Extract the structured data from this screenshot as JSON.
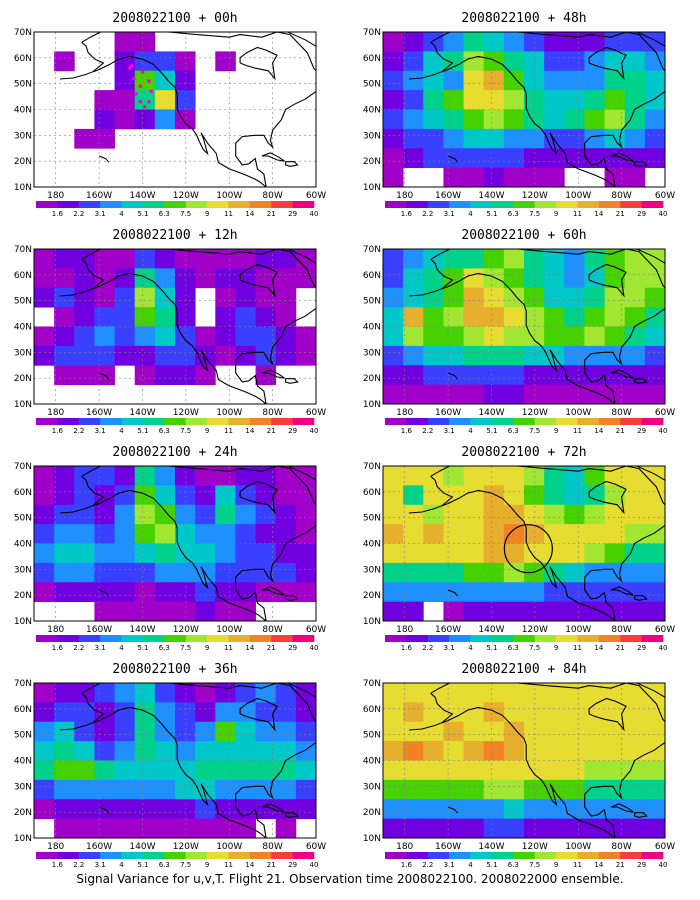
{
  "caption": "Signal Variance for u,v,T. Flight 21. Observation time 2008022100. 2008022000 ensemble.",
  "colorbar": {
    "labels": [
      "1.6",
      "2.2",
      "3.1",
      "4",
      "5.1",
      "6.3",
      "7.5",
      "9",
      "11",
      "14",
      "21",
      "29",
      "40"
    ],
    "colors": [
      "#ffffff",
      "#a000c8",
      "#7000e0",
      "#3a40ff",
      "#1e90ff",
      "#00c8c8",
      "#00d28c",
      "#46d200",
      "#a0e632",
      "#e6dc32",
      "#e6af2d",
      "#f08228",
      "#fa3c3c",
      "#f00082"
    ]
  },
  "axes": {
    "x_ticks": [
      "180",
      "160W",
      "140W",
      "120W",
      "100W",
      "80W",
      "60W"
    ],
    "y_ticks": [
      "10N",
      "20N",
      "30N",
      "40N",
      "50N",
      "60N",
      "70N"
    ],
    "xlim": [
      -190,
      -60
    ],
    "ylim": [
      10,
      70
    ]
  },
  "panels": [
    {
      "title": "2008022100 + 00h"
    },
    {
      "title": "2008022100 + 48h"
    },
    {
      "title": "2008022100 + 12h"
    },
    {
      "title": "2008022100 + 60h"
    },
    {
      "title": "2008022100 + 24h"
    },
    {
      "title": "2008022100 + 72h"
    },
    {
      "title": "2008022100 + 36h"
    },
    {
      "title": "2008022100 + 84h"
    }
  ],
  "chart_data": [
    {
      "type": "heatmap",
      "title": "2008022100 + 00h",
      "value_unit": "",
      "field": [
        [
          0,
          0,
          0,
          0,
          1,
          1,
          0,
          0,
          0,
          0,
          0,
          0,
          0,
          0
        ],
        [
          0,
          1,
          0,
          0,
          2,
          3,
          3,
          1,
          0,
          1,
          0,
          0,
          0,
          0
        ],
        [
          0,
          0,
          0,
          0,
          2,
          7,
          5,
          2,
          0,
          0,
          0,
          0,
          0,
          0
        ],
        [
          0,
          0,
          0,
          1,
          1,
          6,
          9,
          3,
          0,
          0,
          0,
          0,
          0,
          0
        ],
        [
          0,
          0,
          0,
          2,
          1,
          2,
          4,
          1,
          0,
          0,
          0,
          0,
          0,
          0
        ],
        [
          0,
          0,
          1,
          1,
          0,
          0,
          0,
          0,
          0,
          0,
          0,
          0,
          0,
          0
        ],
        [
          0,
          0,
          0,
          0,
          0,
          0,
          0,
          0,
          0,
          0,
          0,
          0,
          0,
          0
        ],
        [
          0,
          0,
          0,
          0,
          0,
          0,
          0,
          0,
          0,
          0,
          0,
          0,
          0,
          0
        ]
      ]
    },
    {
      "type": "heatmap",
      "title": "2008022100 + 48h",
      "value_unit": "",
      "field": [
        [
          1,
          2,
          3,
          4,
          6,
          5,
          4,
          3,
          2,
          2,
          2,
          3,
          3,
          3
        ],
        [
          2,
          3,
          5,
          6,
          8,
          7,
          6,
          5,
          3,
          3,
          4,
          5,
          5,
          4
        ],
        [
          3,
          4,
          5,
          4,
          9,
          10,
          7,
          5,
          4,
          4,
          4,
          6,
          6,
          5
        ],
        [
          2,
          3,
          6,
          7,
          9,
          9,
          8,
          6,
          5,
          5,
          6,
          7,
          6,
          5
        ],
        [
          3,
          4,
          5,
          6,
          7,
          8,
          7,
          6,
          5,
          6,
          7,
          8,
          6,
          4
        ],
        [
          2,
          3,
          3,
          4,
          5,
          5,
          4,
          4,
          3,
          3,
          4,
          5,
          4,
          3
        ],
        [
          1,
          2,
          3,
          3,
          3,
          3,
          3,
          2,
          2,
          2,
          2,
          2,
          2,
          2
        ],
        [
          1,
          0,
          0,
          1,
          1,
          2,
          1,
          1,
          1,
          0,
          0,
          1,
          1,
          0
        ]
      ]
    },
    {
      "type": "heatmap",
      "title": "2008022100 + 12h",
      "value_unit": "",
      "field": [
        [
          1,
          2,
          2,
          1,
          1,
          3,
          2,
          1,
          1,
          1,
          1,
          2,
          2,
          1
        ],
        [
          1,
          1,
          2,
          1,
          2,
          6,
          4,
          2,
          1,
          2,
          2,
          1,
          1,
          1
        ],
        [
          2,
          3,
          2,
          1,
          3,
          8,
          5,
          2,
          0,
          1,
          2,
          1,
          1,
          0
        ],
        [
          0,
          1,
          2,
          3,
          3,
          7,
          6,
          2,
          0,
          2,
          3,
          2,
          1,
          0
        ],
        [
          1,
          2,
          3,
          4,
          3,
          4,
          5,
          3,
          1,
          2,
          3,
          3,
          2,
          1
        ],
        [
          2,
          3,
          3,
          3,
          2,
          2,
          3,
          3,
          2,
          1,
          2,
          3,
          2,
          1
        ],
        [
          0,
          1,
          1,
          1,
          0,
          1,
          2,
          2,
          1,
          0,
          0,
          1,
          0,
          0
        ],
        [
          0,
          0,
          0,
          0,
          0,
          0,
          0,
          0,
          0,
          0,
          0,
          0,
          0,
          0
        ]
      ]
    },
    {
      "type": "heatmap",
      "title": "2008022100 + 60h",
      "value_unit": "",
      "field": [
        [
          3,
          4,
          5,
          6,
          6,
          7,
          8,
          6,
          5,
          4,
          6,
          7,
          8,
          8
        ],
        [
          3,
          5,
          6,
          7,
          9,
          8,
          7,
          6,
          5,
          4,
          5,
          7,
          8,
          8
        ],
        [
          4,
          5,
          6,
          7,
          10,
          9,
          8,
          7,
          5,
          5,
          6,
          8,
          8,
          7
        ],
        [
          5,
          10,
          7,
          8,
          10,
          10,
          9,
          8,
          7,
          6,
          7,
          8,
          7,
          6
        ],
        [
          5,
          8,
          7,
          7,
          8,
          9,
          8,
          8,
          7,
          7,
          8,
          7,
          6,
          5
        ],
        [
          3,
          4,
          5,
          5,
          6,
          6,
          6,
          5,
          5,
          4,
          4,
          4,
          4,
          3
        ],
        [
          2,
          2,
          3,
          3,
          3,
          3,
          3,
          2,
          2,
          2,
          2,
          2,
          2,
          2
        ],
        [
          1,
          1,
          1,
          1,
          1,
          2,
          2,
          1,
          1,
          1,
          1,
          1,
          1,
          1
        ]
      ]
    },
    {
      "type": "heatmap",
      "title": "2008022100 + 24h",
      "value_unit": "",
      "field": [
        [
          1,
          2,
          3,
          3,
          2,
          6,
          4,
          2,
          1,
          1,
          2,
          2,
          1,
          1
        ],
        [
          1,
          2,
          3,
          2,
          3,
          7,
          5,
          3,
          2,
          5,
          3,
          2,
          1,
          1
        ],
        [
          2,
          3,
          3,
          2,
          4,
          8,
          7,
          4,
          3,
          6,
          4,
          3,
          2,
          1
        ],
        [
          3,
          4,
          4,
          3,
          4,
          7,
          8,
          5,
          4,
          4,
          3,
          2,
          2,
          1
        ],
        [
          4,
          5,
          5,
          4,
          4,
          5,
          6,
          5,
          5,
          4,
          3,
          3,
          2,
          2
        ],
        [
          3,
          4,
          4,
          3,
          3,
          3,
          4,
          4,
          4,
          3,
          3,
          3,
          3,
          2
        ],
        [
          1,
          2,
          2,
          2,
          2,
          1,
          2,
          2,
          3,
          2,
          2,
          1,
          1,
          1
        ],
        [
          0,
          0,
          0,
          1,
          1,
          1,
          1,
          1,
          2,
          1,
          1,
          0,
          0,
          0
        ]
      ]
    },
    {
      "type": "heatmap",
      "title": "2008022100 + 72h",
      "value_unit": "",
      "field": [
        [
          9,
          9,
          9,
          8,
          9,
          9,
          9,
          8,
          6,
          5,
          7,
          9,
          9,
          9
        ],
        [
          9,
          6,
          9,
          9,
          9,
          10,
          9,
          7,
          6,
          5,
          6,
          8,
          9,
          9
        ],
        [
          9,
          9,
          8,
          9,
          9,
          10,
          10,
          9,
          8,
          7,
          8,
          9,
          9,
          9
        ],
        [
          10,
          9,
          10,
          9,
          9,
          10,
          11,
          10,
          9,
          9,
          9,
          9,
          8,
          8
        ],
        [
          9,
          9,
          9,
          9,
          9,
          10,
          10,
          9,
          9,
          9,
          8,
          7,
          6,
          6
        ],
        [
          6,
          6,
          6,
          6,
          7,
          7,
          8,
          7,
          6,
          5,
          4,
          4,
          4,
          4
        ],
        [
          4,
          4,
          4,
          4,
          4,
          4,
          4,
          4,
          3,
          3,
          3,
          3,
          3,
          3
        ],
        [
          2,
          2,
          0,
          1,
          2,
          2,
          2,
          2,
          2,
          2,
          2,
          2,
          2,
          2
        ]
      ]
    },
    {
      "type": "heatmap",
      "title": "2008022100 + 36h",
      "value_unit": "",
      "field": [
        [
          1,
          2,
          2,
          3,
          4,
          5,
          3,
          2,
          1,
          2,
          3,
          4,
          3,
          2
        ],
        [
          2,
          3,
          3,
          2,
          3,
          6,
          4,
          3,
          2,
          4,
          4,
          3,
          3,
          2
        ],
        [
          4,
          5,
          3,
          2,
          3,
          6,
          4,
          3,
          4,
          7,
          5,
          4,
          4,
          3
        ],
        [
          5,
          6,
          5,
          3,
          4,
          6,
          5,
          4,
          5,
          5,
          5,
          5,
          5,
          4
        ],
        [
          6,
          7,
          7,
          6,
          5,
          5,
          5,
          5,
          6,
          6,
          6,
          6,
          6,
          5
        ],
        [
          3,
          4,
          4,
          4,
          4,
          4,
          4,
          5,
          5,
          4,
          4,
          4,
          4,
          3
        ],
        [
          1,
          2,
          2,
          2,
          2,
          2,
          2,
          2,
          3,
          2,
          2,
          2,
          2,
          2
        ],
        [
          0,
          1,
          1,
          1,
          1,
          1,
          1,
          1,
          1,
          1,
          1,
          0,
          1,
          0
        ]
      ]
    },
    {
      "type": "heatmap",
      "title": "2008022100 + 84h",
      "value_unit": "",
      "field": [
        [
          9,
          9,
          9,
          9,
          9,
          9,
          9,
          9,
          9,
          9,
          9,
          9,
          9,
          9
        ],
        [
          9,
          10,
          9,
          9,
          9,
          10,
          9,
          9,
          9,
          9,
          9,
          9,
          9,
          9
        ],
        [
          9,
          9,
          9,
          10,
          9,
          9,
          10,
          9,
          9,
          9,
          9,
          9,
          9,
          9
        ],
        [
          10,
          11,
          10,
          9,
          10,
          11,
          10,
          9,
          9,
          9,
          9,
          9,
          9,
          9
        ],
        [
          9,
          9,
          9,
          9,
          9,
          9,
          9,
          9,
          9,
          9,
          8,
          8,
          8,
          8
        ],
        [
          7,
          7,
          7,
          7,
          7,
          8,
          8,
          7,
          7,
          7,
          6,
          6,
          6,
          6
        ],
        [
          4,
          4,
          4,
          4,
          4,
          4,
          5,
          4,
          4,
          4,
          4,
          4,
          4,
          4
        ],
        [
          2,
          2,
          2,
          2,
          2,
          3,
          3,
          2,
          2,
          2,
          2,
          2,
          2,
          2
        ]
      ]
    }
  ]
}
